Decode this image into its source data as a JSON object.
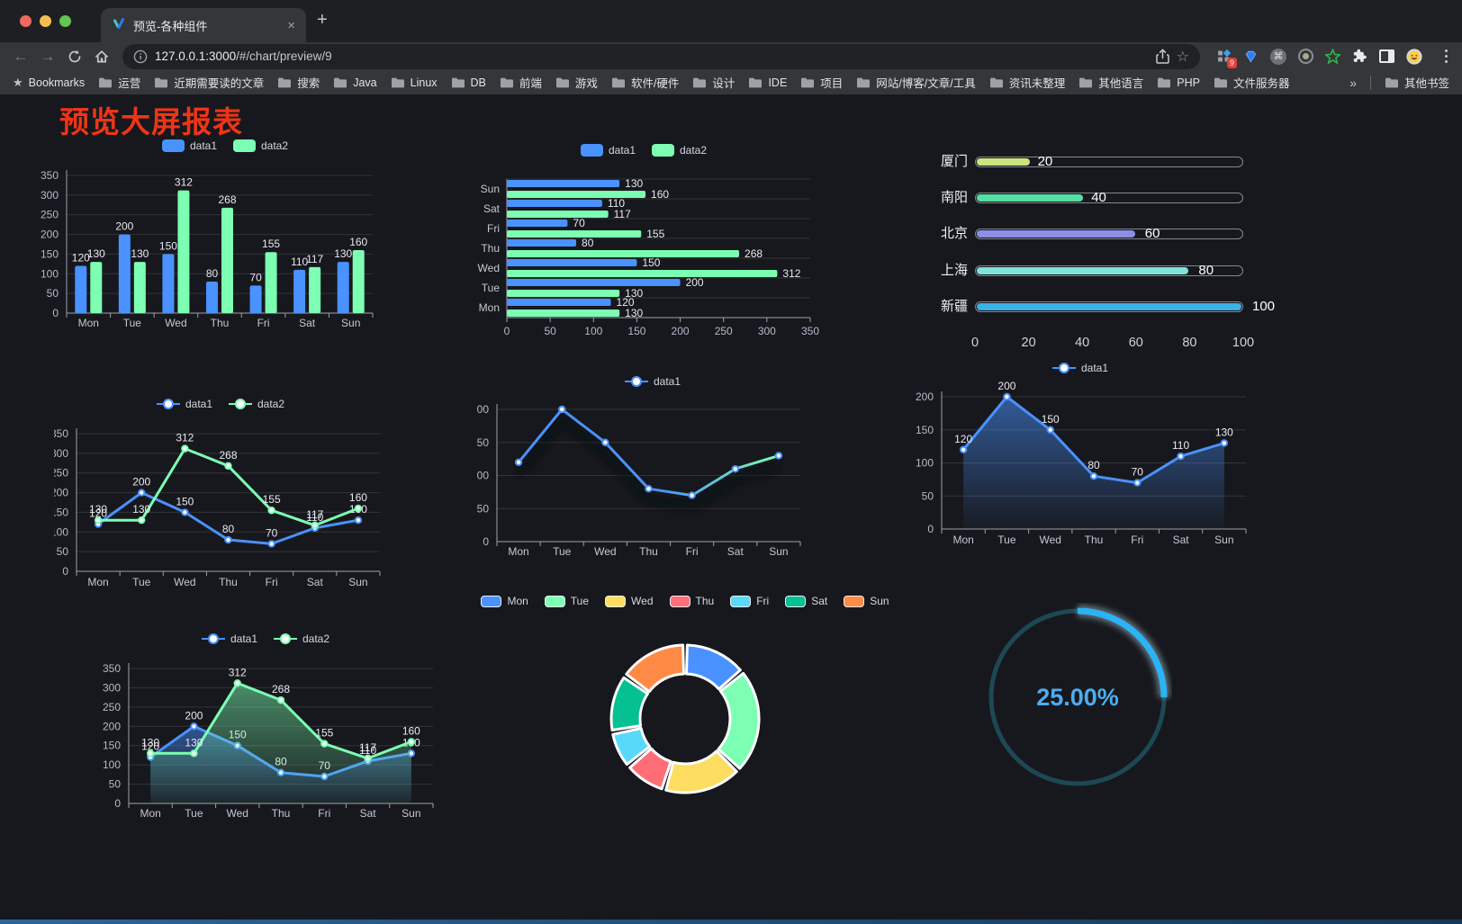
{
  "browser": {
    "tab": {
      "title": "预览-各种组件",
      "close_glyph": "×",
      "new_tab_glyph": "+"
    },
    "address": {
      "host": "127.0.0.1:3000",
      "path": "/#/chart/preview/9"
    },
    "extension_badge": "9",
    "bookmarks": {
      "root_label": "Bookmarks",
      "folders": [
        "运营",
        "近期需要读的文章",
        "搜索",
        "Java",
        "Linux",
        "DB",
        "前端",
        "游戏",
        "软件/硬件",
        "设计",
        "IDE",
        "项目",
        "网站/博客/文章/工具",
        "资讯未整理",
        "其他语言",
        "PHP",
        "文件服务器"
      ],
      "overflow": "»",
      "other": "其他书签"
    }
  },
  "page": {
    "title": "预览大屏报表",
    "title_color": "#ee3517",
    "background": "#17181d",
    "accent_colors": {
      "data1": "#4992ff",
      "data2": "#7cffb2"
    }
  },
  "chart_data": [
    {
      "id": "grouped-bar",
      "type": "bar",
      "categories": [
        "Mon",
        "Tue",
        "Wed",
        "Thu",
        "Fri",
        "Sat",
        "Sun"
      ],
      "series": [
        {
          "name": "data1",
          "color": "#4992ff",
          "values": [
            120,
            200,
            150,
            80,
            70,
            110,
            130
          ]
        },
        {
          "name": "data2",
          "color": "#7cffb2",
          "values": [
            130,
            130,
            312,
            268,
            155,
            117,
            160
          ]
        }
      ],
      "ylim": [
        0,
        350
      ],
      "ytick_step": 50,
      "value_labels": true,
      "legend_position": "top",
      "grid": true
    },
    {
      "id": "grouped-hbar",
      "type": "bar",
      "orientation": "horizontal",
      "categories": [
        "Mon",
        "Tue",
        "Wed",
        "Thu",
        "Fri",
        "Sat",
        "Sun"
      ],
      "series": [
        {
          "name": "data1",
          "color": "#4992ff",
          "values": [
            120,
            200,
            150,
            80,
            70,
            110,
            130
          ]
        },
        {
          "name": "data2",
          "color": "#7cffb2",
          "values": [
            130,
            130,
            312,
            268,
            155,
            117,
            160
          ]
        }
      ],
      "xlim": [
        0,
        350
      ],
      "xtick_step": 50,
      "value_labels": true,
      "legend_position": "top",
      "grid": true
    },
    {
      "id": "progress",
      "type": "bar",
      "variant": "progress-list",
      "max": 100,
      "ticks": [
        0,
        20,
        40,
        60,
        80,
        100
      ],
      "rows": [
        {
          "label": "厦门",
          "value": 20,
          "color": "#cbe57f"
        },
        {
          "label": "南阳",
          "value": 40,
          "color": "#54e0a2"
        },
        {
          "label": "北京",
          "value": 60,
          "color": "#8b8fe9"
        },
        {
          "label": "上海",
          "value": 80,
          "color": "#7fe3dc"
        },
        {
          "label": "新疆",
          "value": 100,
          "color": "#3ab2e6"
        }
      ]
    },
    {
      "id": "line-two",
      "type": "line",
      "categories": [
        "Mon",
        "Tue",
        "Wed",
        "Thu",
        "Fri",
        "Sat",
        "Sun"
      ],
      "series": [
        {
          "name": "data1",
          "color": "#4992ff",
          "values": [
            120,
            200,
            150,
            80,
            70,
            110,
            130
          ]
        },
        {
          "name": "data2",
          "color": "#7cffb2",
          "values": [
            130,
            130,
            312,
            268,
            155,
            117,
            160
          ]
        }
      ],
      "ylim": [
        0,
        350
      ],
      "ytick_step": 50,
      "value_labels": true,
      "legend_position": "top",
      "grid": true
    },
    {
      "id": "line-gradient",
      "type": "line",
      "categories": [
        "Mon",
        "Tue",
        "Wed",
        "Thu",
        "Fri",
        "Sat",
        "Sun"
      ],
      "series": [
        {
          "name": "data1",
          "gradient": [
            "#4992ff",
            "#7cffb2"
          ],
          "values": [
            120,
            200,
            150,
            80,
            70,
            110,
            130
          ]
        }
      ],
      "ylim": [
        0,
        200
      ],
      "ytick_step": 50,
      "value_labels": false,
      "legend_position": "top",
      "grid": true
    },
    {
      "id": "area-one",
      "type": "area",
      "categories": [
        "Mon",
        "Tue",
        "Wed",
        "Thu",
        "Fri",
        "Sat",
        "Sun"
      ],
      "series": [
        {
          "name": "data1",
          "color": "#4992ff",
          "values": [
            120,
            200,
            150,
            80,
            70,
            110,
            130
          ]
        }
      ],
      "ylim": [
        0,
        200
      ],
      "ytick_step": 50,
      "value_labels": true,
      "legend_position": "top",
      "grid": true
    },
    {
      "id": "area-two",
      "type": "area",
      "categories": [
        "Mon",
        "Tue",
        "Wed",
        "Thu",
        "Fri",
        "Sat",
        "Sun"
      ],
      "series": [
        {
          "name": "data1",
          "color": "#4992ff",
          "values": [
            120,
            200,
            150,
            80,
            70,
            110,
            130
          ]
        },
        {
          "name": "data2",
          "color": "#7cffb2",
          "values": [
            130,
            130,
            312,
            268,
            155,
            117,
            160
          ]
        }
      ],
      "ylim": [
        0,
        350
      ],
      "ytick_step": 50,
      "value_labels": true,
      "legend_position": "top",
      "grid": true
    },
    {
      "id": "donut",
      "type": "pie",
      "inner_radius_ratio": 0.61,
      "categories": [
        "Mon",
        "Tue",
        "Wed",
        "Thu",
        "Fri",
        "Sat",
        "Sun"
      ],
      "values": [
        120,
        200,
        150,
        80,
        70,
        110,
        130
      ],
      "colors": [
        "#4992ff",
        "#7cffb2",
        "#fddd60",
        "#ff6e76",
        "#58d9f9",
        "#05c091",
        "#ff8a45"
      ],
      "legend_position": "top"
    },
    {
      "id": "gauge",
      "type": "gauge",
      "value": 25,
      "max": 100,
      "display": "25.00%",
      "color": "#2ab4f5",
      "track_color": "#1d4854",
      "text_color": "#4badf0"
    }
  ]
}
